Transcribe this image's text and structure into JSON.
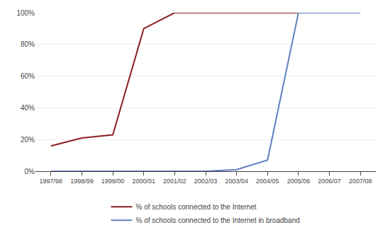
{
  "chart_data": {
    "type": "line",
    "categories": [
      "1997/98",
      "1998/99",
      "1999/00",
      "2000/01",
      "2001/02",
      "2002/03",
      "2003/04",
      "2004/05",
      "2005/06",
      "2006/07",
      "2007/08"
    ],
    "series": [
      {
        "name": "% of schools connected to the Internet",
        "color": "#8B2020",
        "values": [
          16,
          21,
          23,
          90,
          100,
          100,
          100,
          100,
          100,
          100,
          100
        ]
      },
      {
        "name": "% of schools connected to the Internet in broadband",
        "color": "#6080C0",
        "values": [
          0,
          0,
          0,
          0,
          0,
          0,
          1,
          7,
          100,
          100,
          100
        ]
      }
    ],
    "ylim": [
      0,
      100
    ],
    "yticks": [
      {
        "value": 0,
        "label": "0%"
      },
      {
        "value": 20,
        "label": "20%"
      },
      {
        "value": 40,
        "label": "40%"
      },
      {
        "value": 60,
        "label": "60%"
      },
      {
        "value": 80,
        "label": "80%"
      },
      {
        "value": 100,
        "label": "100%"
      }
    ],
    "grid": true,
    "legend": "bottom"
  }
}
